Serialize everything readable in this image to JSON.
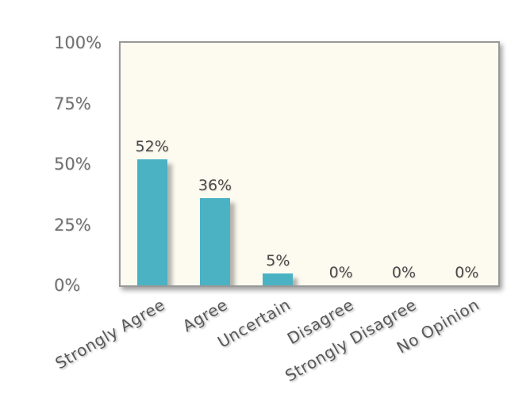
{
  "chart_data": {
    "type": "bar",
    "title": "",
    "xlabel": "",
    "ylabel": "",
    "categories": [
      "Strongly Agree",
      "Agree",
      "Uncertain",
      "Disagree",
      "Strongly Disagree",
      "No Opinion"
    ],
    "values": [
      52,
      36,
      5,
      0,
      0,
      0
    ],
    "value_labels": [
      "52%",
      "36%",
      "5%",
      "0%",
      "0%",
      "0%"
    ],
    "ytick_values": [
      0,
      25,
      50,
      75,
      100
    ],
    "ytick_labels": [
      "0%",
      "25%",
      "50%",
      "75%",
      "100%"
    ],
    "ylim": [
      0,
      100
    ],
    "grid": false,
    "legend": false,
    "colors": {
      "bar": "#4BB2C4",
      "plot_background": "#FDFBF0",
      "plot_border": "#999999",
      "tick_text": "#707070",
      "value_text": "#4A4A4A",
      "category_text": "#595959",
      "page_background": "#FFFFFF"
    }
  }
}
